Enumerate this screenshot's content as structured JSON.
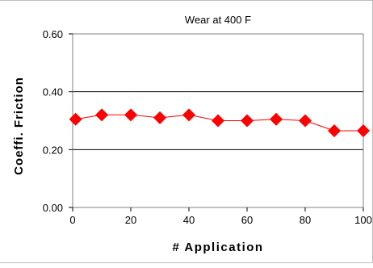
{
  "chart_data": {
    "type": "line",
    "title": "Wear at 400 F",
    "xlabel": "# Application",
    "ylabel": "Coeffi. Friction",
    "xlim": [
      0,
      100
    ],
    "ylim": [
      0,
      0.6
    ],
    "x_ticks": [
      0,
      20,
      40,
      60,
      80,
      100
    ],
    "y_ticks": [
      0,
      0.2,
      0.4,
      0.6
    ],
    "x_tick_labels": [
      "0",
      "20",
      "40",
      "60",
      "80",
      "100"
    ],
    "y_tick_labels": [
      "0.00",
      "0.20",
      "0.40",
      "0.60"
    ],
    "grid": "horizontal major lines",
    "legend": "none",
    "series": [
      {
        "marker": "diamond",
        "color": "#ff0000",
        "x": [
          1,
          10,
          20,
          30,
          40,
          50,
          60,
          70,
          80,
          90,
          100
        ],
        "y": [
          0.305,
          0.32,
          0.32,
          0.31,
          0.32,
          0.3,
          0.3,
          0.305,
          0.3,
          0.265,
          0.265
        ]
      }
    ]
  }
}
